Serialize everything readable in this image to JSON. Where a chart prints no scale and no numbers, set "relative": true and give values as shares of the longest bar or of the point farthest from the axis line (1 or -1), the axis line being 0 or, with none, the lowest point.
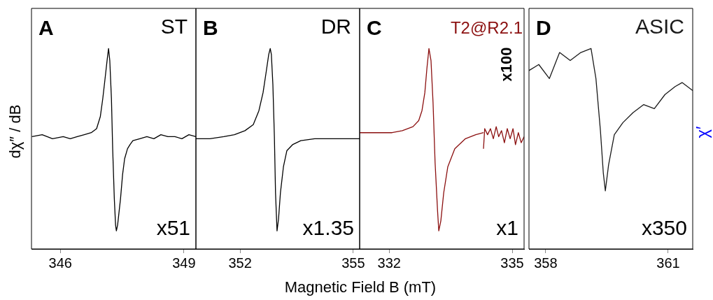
{
  "chart_data": [
    {
      "type": "line",
      "relative": true,
      "ylabel": "dχ″ / dB",
      "xlim": [
        345.3,
        349.29
      ],
      "xticks": [
        346,
        349
      ],
      "annotations": [
        "A",
        "ST",
        "x51"
      ],
      "series": [
        {
          "color": "#000000",
          "x": [
            345.31,
            345.56,
            345.81,
            346.07,
            346.24,
            346.41,
            346.58,
            346.75,
            346.88,
            346.97,
            347.03,
            347.08,
            347.14,
            347.17,
            347.2,
            347.24,
            347.27,
            347.31,
            347.34,
            347.36,
            347.39,
            347.46,
            347.51,
            347.56,
            347.63,
            347.69,
            347.76,
            347.93,
            348.1,
            348.27,
            348.44,
            348.61,
            348.78,
            348.95,
            349.12,
            349.29
          ],
          "values": [
            0.56,
            0.57,
            0.55,
            0.56,
            0.55,
            0.56,
            0.57,
            0.58,
            0.6,
            0.66,
            0.75,
            0.84,
            0.95,
            1,
            0.94,
            0.75,
            0.5,
            0.25,
            0.12,
            0.09,
            0.12,
            0.25,
            0.37,
            0.45,
            0.5,
            0.52,
            0.54,
            0.55,
            0.56,
            0.55,
            0.57,
            0.56,
            0.56,
            0.55,
            0.57,
            0.56
          ]
        }
      ]
    },
    {
      "type": "line",
      "relative": true,
      "xlabel": "Magnetic Field B (mT)",
      "xlim": [
        350.83,
        355.17
      ],
      "xticks": [
        352,
        355
      ],
      "annotations": [
        "B",
        "DR",
        "x1.35"
      ],
      "series": [
        {
          "color": "#000000",
          "x": [
            350.83,
            351.2,
            351.57,
            351.85,
            352.13,
            352.35,
            352.5,
            352.61,
            352.69,
            352.76,
            352.8,
            352.83,
            352.87,
            352.91,
            352.94,
            352.98,
            353.02,
            353.07,
            353.15,
            353.24,
            353.39,
            353.61,
            353.98,
            354.54,
            355.17
          ],
          "values": [
            0.55,
            0.55,
            0.56,
            0.57,
            0.59,
            0.62,
            0.69,
            0.78,
            0.88,
            0.97,
            1,
            0.97,
            0.82,
            0.56,
            0.28,
            0.09,
            0.15,
            0.28,
            0.41,
            0.49,
            0.52,
            0.54,
            0.55,
            0.55,
            0.55
          ]
        }
      ]
    },
    {
      "type": "line",
      "relative": true,
      "xlim": [
        331.28,
        335.29
      ],
      "xticks": [
        332,
        335
      ],
      "annotations": [
        "C",
        "T2@R2.1",
        "x1",
        "x100"
      ],
      "series": [
        {
          "color": "#8b0f0f",
          "x": [
            331.28,
            331.73,
            332.07,
            332.32,
            332.58,
            332.72,
            332.8,
            332.87,
            332.92,
            332.97,
            333.02,
            333.07,
            333.12,
            333.18,
            333.21,
            333.26,
            333.33,
            333.43,
            333.6,
            333.86,
            334.11,
            334.3
          ],
          "values": [
            0.58,
            0.58,
            0.58,
            0.59,
            0.61,
            0.64,
            0.69,
            0.78,
            0.9,
            1,
            0.94,
            0.73,
            0.43,
            0.19,
            0.09,
            0.14,
            0.28,
            0.41,
            0.5,
            0.55,
            0.57,
            0.58
          ]
        },
        {
          "color": "#8b0f0f",
          "x": [
            334.3,
            334.33,
            334.4,
            334.47,
            334.54,
            334.61,
            334.67,
            334.74,
            334.81,
            334.88,
            334.95,
            335.02,
            335.08,
            335.15,
            335.22,
            335.29
          ],
          "values": [
            0.5,
            0.6,
            0.57,
            0.6,
            0.55,
            0.61,
            0.56,
            0.59,
            0.53,
            0.6,
            0.55,
            0.6,
            0.52,
            0.58,
            0.53,
            0.56
          ]
        }
      ]
    },
    {
      "type": "line",
      "relative": true,
      "y2label": "χ′",
      "xlim": [
        357.59,
        361.6
      ],
      "xticks": [
        358,
        361
      ],
      "annotations": [
        "D",
        "ASIC",
        "x350"
      ],
      "series": [
        {
          "color": "#1a1a1a",
          "x": [
            357.59,
            357.83,
            358.09,
            358.34,
            358.6,
            358.86,
            359.11,
            359.23,
            359.34,
            359.41,
            359.46,
            359.54,
            359.68,
            359.89,
            360.14,
            360.4,
            360.66,
            360.92,
            361.17,
            361.34,
            361.6
          ],
          "values": [
            0.89,
            0.92,
            0.85,
            0.98,
            0.94,
            0.98,
            1,
            0.85,
            0.59,
            0.38,
            0.29,
            0.42,
            0.57,
            0.63,
            0.68,
            0.72,
            0.7,
            0.77,
            0.81,
            0.83,
            0.79
          ]
        }
      ]
    }
  ]
}
